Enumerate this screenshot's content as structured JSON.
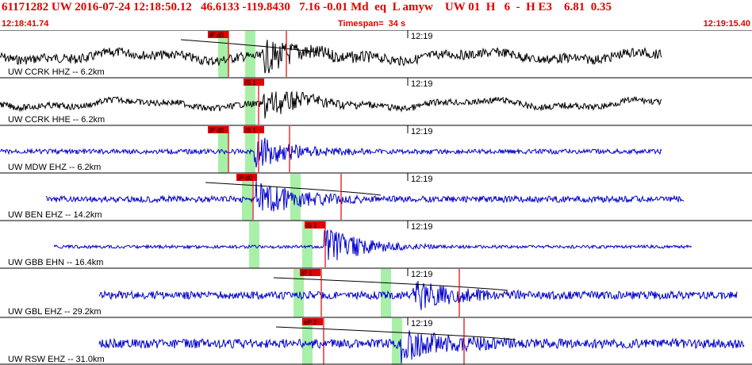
{
  "header": {
    "event_line": "61171282 UW 2016-07-24 12:18:50.12   46.6133 -119.8430   7.16 -0.01 Md  eq  L amyw    UW 01  H   6  -  H E3    6.81  0.35",
    "start_time": "12:18:41.74",
    "timespan": "Timespan=  34 s",
    "end_time": "12:19:15.40"
  },
  "colors": {
    "header_text": "#e00000",
    "pick_marker": "#e00000",
    "trace_black": "#000000",
    "trace_blue": "#0000cc",
    "window_green": "#a8f0a8"
  },
  "minute_mark": "12:19",
  "traces": [
    {
      "label": "UW CCRK HHZ -- 6.2km",
      "color": "black",
      "picks": [
        "iP d0"
      ],
      "start_frac": 0.0,
      "end_frac": 0.89
    },
    {
      "label": "UW CCRK HHE -- 6.2km",
      "color": "black",
      "picks": [
        "iS 1"
      ],
      "start_frac": 0.0,
      "end_frac": 0.89
    },
    {
      "label": "UW MDW EHZ -- 6.2km",
      "color": "blue",
      "picks": [
        "iP d0",
        "iS 1"
      ],
      "start_frac": 0.0,
      "end_frac": 0.89
    },
    {
      "label": "UW BEN EHZ -- 14.2km",
      "color": "blue",
      "picks": [
        "iP d0"
      ],
      "start_frac": 0.03,
      "end_frac": 0.92
    },
    {
      "label": "UW GBB EHN -- 16.4km",
      "color": "blue",
      "picks": [
        "iS 1"
      ],
      "start_frac": 0.04,
      "end_frac": 0.93
    },
    {
      "label": "UW GBL EHZ -- 29.2km",
      "color": "blue",
      "picks": [
        "iP 1"
      ],
      "start_frac": 0.1,
      "end_frac": 0.99
    },
    {
      "label": "UW RSW EHZ -- 31.0km",
      "color": "blue",
      "picks": [
        "eP 2"
      ],
      "start_frac": 0.1,
      "end_frac": 1.0
    }
  ]
}
